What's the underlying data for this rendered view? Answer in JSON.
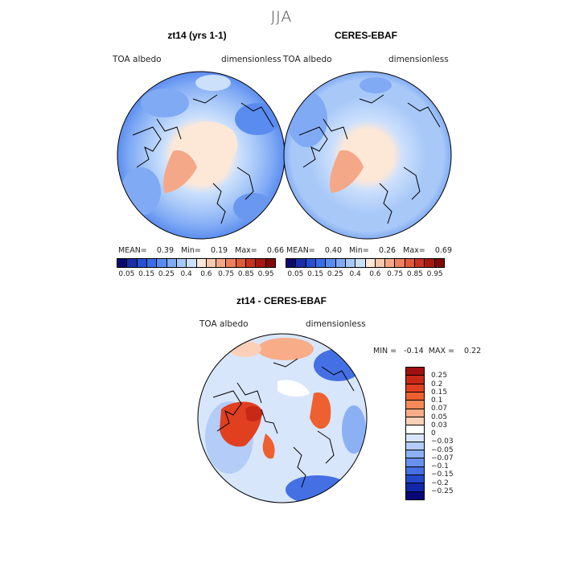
{
  "title": "JJA",
  "panels": [
    {
      "title": "zt14 (yrs 1-1)",
      "var_label": "TOA albedo",
      "units": "dimensionless",
      "stats": "MEAN=    0.39   Min=    0.19   Max=    0.66"
    },
    {
      "title": "CERES-EBAF",
      "var_label": "TOA albedo",
      "units": "dimensionless",
      "stats": "MEAN=    0.40   Min=    0.26   Max=    0.69"
    }
  ],
  "albedo_colorbar": {
    "colors": [
      "#0a0a6e",
      "#1a2ea8",
      "#2650d0",
      "#3a6ee8",
      "#5a8cf0",
      "#80aaf4",
      "#a8c8f8",
      "#cce0fc",
      "#fde8d8",
      "#f8c8b0",
      "#f4a888",
      "#ec8060",
      "#e05a3c",
      "#c83220",
      "#a81810",
      "#800a0a"
    ],
    "tick_labels": [
      "0.05",
      "0.15",
      "0.25",
      "0.4",
      "0.6",
      "0.75",
      "0.85",
      "0.95"
    ]
  },
  "diff_panel": {
    "title": "zt14 - CERES-EBAF",
    "var_label": "TOA albedo",
    "units": "dimensionless",
    "stats": "MIN =   -0.14  MAX =    0.22"
  },
  "diff_colorbar": {
    "colors": [
      "#a01010",
      "#c82818",
      "#e04020",
      "#ee6030",
      "#f48858",
      "#f8ac88",
      "#fcd0b8",
      "#ffffff",
      "#d8e6fc",
      "#b4ccf8",
      "#8cb0f4",
      "#6890ee",
      "#4470e4",
      "#2448cc",
      "#1028a8",
      "#08087a"
    ],
    "tick_labels": [
      "0.25",
      "0.2",
      "0.15",
      "0.1",
      "0.07",
      "0.05",
      "0.03",
      "0",
      "−0.03",
      "−0.05",
      "−0.07",
      "−0.1",
      "−0.15",
      "−0.2",
      "−0.25"
    ]
  }
}
